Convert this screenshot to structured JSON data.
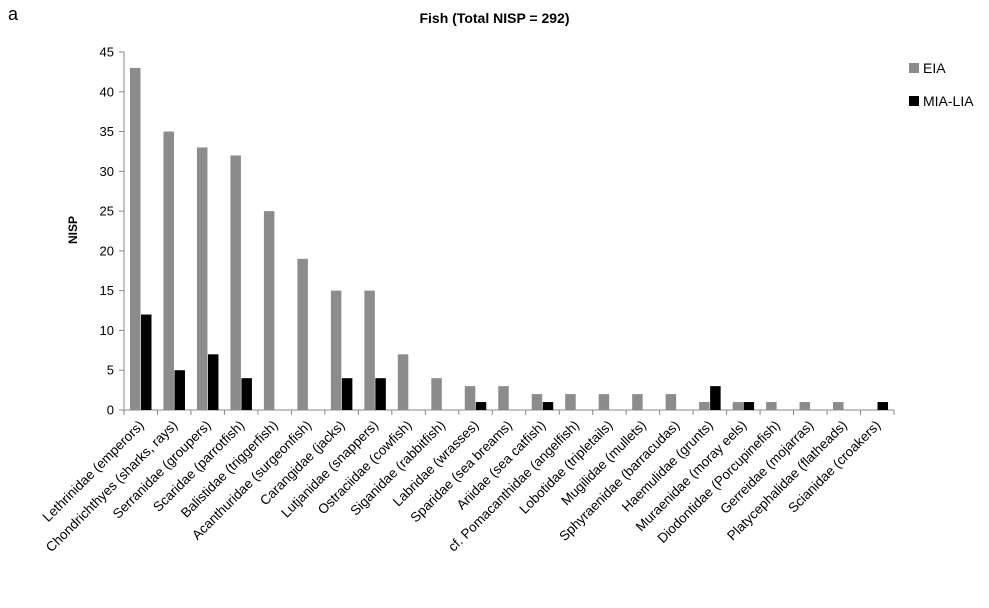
{
  "panel_label": "a",
  "chart_data": {
    "type": "bar",
    "title": "Fish (Total NISP = 292)",
    "xlabel": "",
    "ylabel": "NISP",
    "ylim": [
      0,
      45
    ],
    "yticks": [
      0,
      5,
      10,
      15,
      20,
      25,
      30,
      35,
      40,
      45
    ],
    "grid": false,
    "legend_position": "right",
    "categories": [
      "Lethrinidae (emperors)",
      "Chondrichthyes (sharks, rays)",
      "Serranidae (groupers)",
      "Scaridae (parrotfish)",
      "Balistidae (triggerfish)",
      "Acanthuridae (surgeonfish)",
      "Carangidae (jacks)",
      "Lutjanidae (snappers)",
      "Ostraciidae (cowfish)",
      "Siganidae (rabbitfish)",
      "Labridae (wrasses)",
      "Sparidae (sea breams)",
      "Ariidae (sea catfish)",
      "cf. Pomacanthidae (angelfish)",
      "Lobotidae (tripletails)",
      "Mugilidae (mullets)",
      "Sphyraenidae (barracudas)",
      "Haemulidae (grunts)",
      "Muraenidae (moray eels)",
      "Diodontidae (Porcupinefish)",
      "Gerreidae (mojarras)",
      "Platycephalidae (flatheads)",
      "Scianidae (croakers)"
    ],
    "series": [
      {
        "name": "EIA",
        "color": "#8c8c8c",
        "values": [
          43,
          35,
          33,
          32,
          25,
          19,
          15,
          15,
          7,
          4,
          3,
          3,
          2,
          2,
          2,
          2,
          2,
          1,
          1,
          1,
          1,
          1,
          0
        ]
      },
      {
        "name": "MIA-LIA",
        "color": "#000000",
        "values": [
          12,
          5,
          7,
          4,
          0,
          0,
          4,
          4,
          0,
          0,
          1,
          0,
          1,
          0,
          0,
          0,
          0,
          3,
          1,
          0,
          0,
          0,
          1
        ]
      }
    ]
  }
}
